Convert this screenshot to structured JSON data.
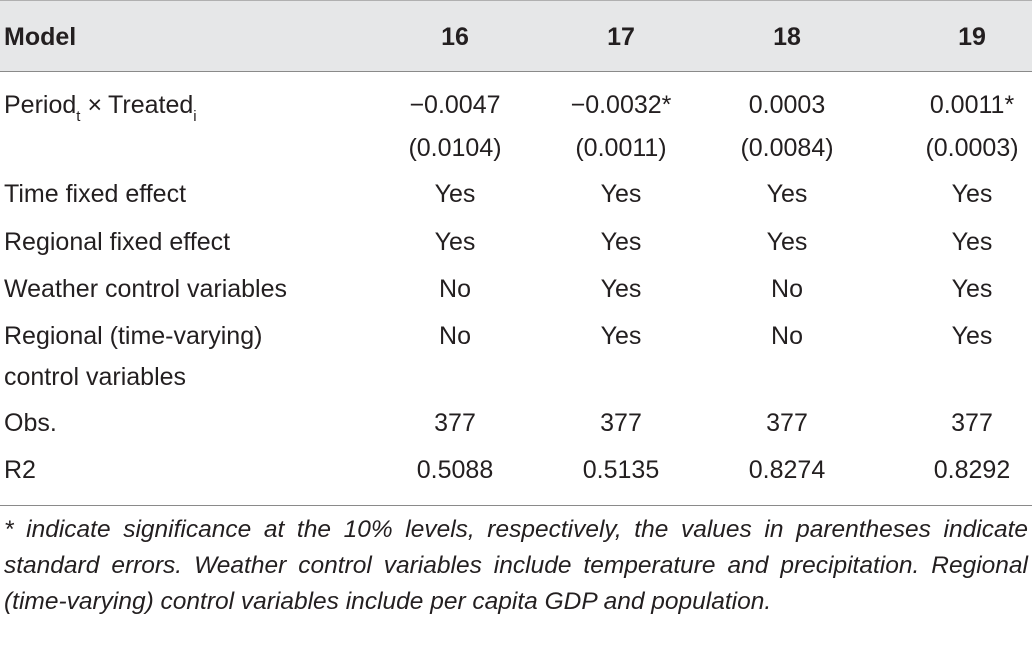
{
  "table": {
    "header": {
      "model_label": "Model",
      "columns": [
        "16",
        "17",
        "18",
        "19"
      ]
    },
    "interaction_row": {
      "label_main": "Period",
      "label_sub_t": "t",
      "label_times": "×",
      "label_treated": "Treated",
      "label_sub_i": "i",
      "coefficients": [
        "−0.0047",
        "−0.0032*",
        "0.0003",
        "0.0011*"
      ],
      "standard_errors": [
        "(0.0104)",
        "(0.0011)",
        "(0.0084)",
        "(0.0003)"
      ]
    },
    "rows": [
      {
        "label": "Time fixed effect",
        "values": [
          "Yes",
          "Yes",
          "Yes",
          "Yes"
        ]
      },
      {
        "label": "Regional fixed effect",
        "values": [
          "Yes",
          "Yes",
          "Yes",
          "Yes"
        ]
      },
      {
        "label": "Weather control variables",
        "values": [
          "No",
          "Yes",
          "No",
          "Yes"
        ]
      },
      {
        "label_line1": "Regional (time-varying)",
        "label_line2": "control variables",
        "values": [
          "No",
          "Yes",
          "No",
          "Yes"
        ]
      },
      {
        "label": "Obs.",
        "values": [
          "377",
          "377",
          "377",
          "377"
        ]
      },
      {
        "label": "R2",
        "values": [
          "0.5088",
          "0.5135",
          "0.8274",
          "0.8292"
        ]
      }
    ]
  },
  "footnote": "* indicate significance at the 10% levels, respectively, the values in parentheses indicate standard errors. Weather control variables include temperature and precipitation. Regional (time-varying) control variables include per capita GDP and population."
}
